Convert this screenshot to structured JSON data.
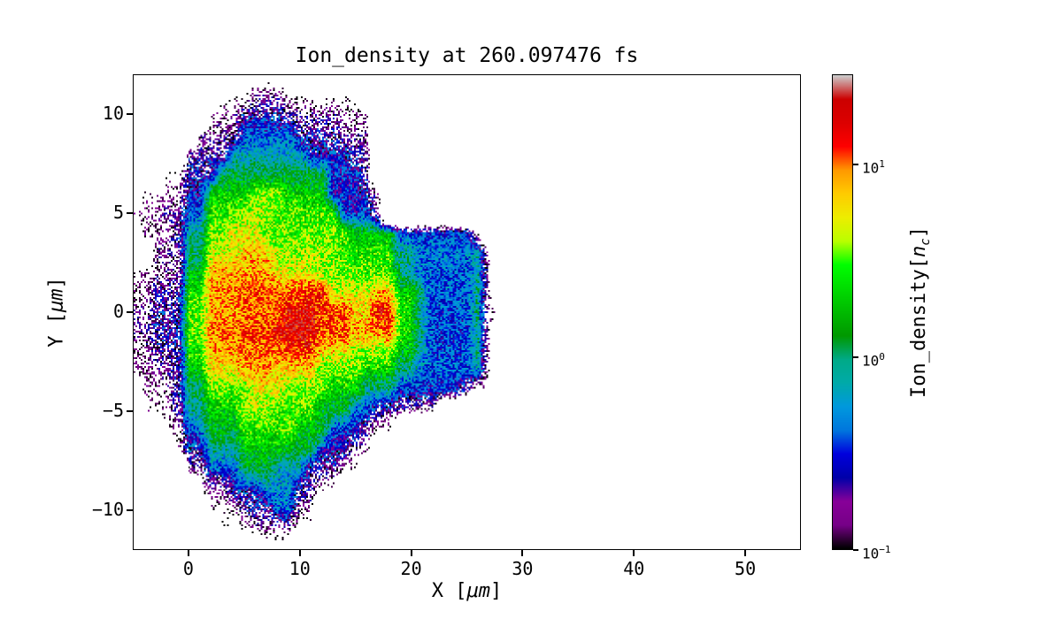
{
  "chart_data": {
    "type": "heatmap",
    "title": "Ion_density at 260.097476 fs",
    "xlabel": {
      "prefix": "X [",
      "italic": "μm",
      "suffix": "]"
    },
    "ylabel": {
      "prefix": "Y [",
      "italic": "μm",
      "suffix": "]"
    },
    "xlim": [
      -5,
      55
    ],
    "ylim": [
      -12,
      12
    ],
    "xticks": [
      0,
      10,
      20,
      30,
      40,
      50
    ],
    "yticks": [
      -10,
      -5,
      0,
      5,
      10
    ],
    "colorbar": {
      "label": {
        "prefix": "Ion_density[",
        "var": "n",
        "sub": "c",
        "suffix": "]"
      },
      "scale": "log",
      "tick_exponents": [
        1,
        0,
        -1
      ],
      "vmin_log10": -1,
      "vmax_log10": 1.47,
      "colormap": "nipy_spectral"
    },
    "colormap_stops": [
      [
        0.0,
        "#000000"
      ],
      [
        0.05,
        "#770088"
      ],
      [
        0.1,
        "#880099"
      ],
      [
        0.15,
        "#0000AA"
      ],
      [
        0.2,
        "#0000DD"
      ],
      [
        0.25,
        "#0077DD"
      ],
      [
        0.3,
        "#0099DD"
      ],
      [
        0.35,
        "#00AAAA"
      ],
      [
        0.4,
        "#00AA88"
      ],
      [
        0.45,
        "#009900"
      ],
      [
        0.5,
        "#00BB00"
      ],
      [
        0.55,
        "#00DD00"
      ],
      [
        0.6,
        "#00FF00"
      ],
      [
        0.65,
        "#BBFF00"
      ],
      [
        0.7,
        "#EEEE00"
      ],
      [
        0.75,
        "#FFCC00"
      ],
      [
        0.8,
        "#FF9900"
      ],
      [
        0.85,
        "#FF0000"
      ],
      [
        0.9,
        "#DD0000"
      ],
      [
        0.95,
        "#CC0000"
      ],
      [
        1.0,
        "#CCCCCC"
      ]
    ],
    "noise_amp": 0.48,
    "noise_amp_dense": 0.25,
    "dense_cutoff": -0.6,
    "display_threshold": -1.03,
    "background": "#ffffff",
    "grid": {
      "units": "log10(n/nc)",
      "x0": -5,
      "dx": 1,
      "y0": 12,
      "dy": -1,
      "ncols": 36,
      "nrows": 25,
      "values": [
        [
          -3,
          -3,
          -3,
          -3,
          -3,
          -3,
          -3,
          -3,
          -3,
          -1.7,
          -1.7,
          -1.7,
          -1.7,
          -1.7,
          -1.7,
          -1.7,
          -1.7,
          -1.7,
          -1.7,
          -3,
          -3,
          -3,
          -3,
          -3,
          -3,
          -3,
          -3,
          -3,
          -3,
          -3,
          -3,
          -3,
          -3,
          -3,
          -3,
          -3
        ],
        [
          -3,
          -3,
          -3,
          -3,
          -3,
          -3,
          -3,
          -3,
          -1.5,
          -1.5,
          -1.5,
          -1.1,
          -1.1,
          -1.1,
          -1.5,
          -1.5,
          -1.5,
          -1.5,
          -1.5,
          -1.5,
          -1.5,
          -3,
          -3,
          -3,
          -3,
          -3,
          -3,
          -3,
          -3,
          -3,
          -3,
          -3,
          -3,
          -3,
          -3,
          -3
        ],
        [
          -3,
          -3,
          -3,
          -3,
          -3,
          -3,
          -3,
          -1.2,
          -1.2,
          -1.2,
          -0.7,
          -0.7,
          -0.7,
          -0.7,
          -1,
          -1,
          -1,
          -1,
          -1,
          -1.2,
          -1.2,
          -1.2,
          -3,
          -3,
          -3,
          -3,
          -3,
          -3,
          -3,
          -3,
          -3,
          -3,
          -3,
          -3,
          -3,
          -3
        ],
        [
          -3,
          -3,
          -3,
          -3,
          -3,
          -3,
          -1.1,
          -1.1,
          -1.1,
          -1.1,
          -0.4,
          -0.4,
          -0.4,
          -0.4,
          -0.4,
          -0.8,
          -0.8,
          -0.8,
          -0.8,
          -1.1,
          -1.1,
          -1.1,
          -3,
          -3,
          -3,
          -3,
          -3,
          -3,
          -3,
          -3,
          -3,
          -3,
          -3,
          -3,
          -3,
          -3
        ],
        [
          -3,
          -3,
          -3,
          -3,
          -3,
          -0.9,
          -0.9,
          -0.9,
          -0.9,
          -0.2,
          -0.2,
          -0.2,
          -0.2,
          -0.2,
          -0.2,
          -0.2,
          -0.6,
          -0.6,
          -0.6,
          -0.6,
          -0.9,
          -0.9,
          -3,
          -3,
          -3,
          -3,
          -3,
          -3,
          -3,
          -3,
          -3,
          -3,
          -3,
          -3,
          -3,
          -3
        ],
        [
          -3,
          -3,
          -3,
          -1.4,
          -1.4,
          -0.7,
          -0.7,
          -0.7,
          0.05,
          0.05,
          0.05,
          0.05,
          0.05,
          0.05,
          0.05,
          0.05,
          0.05,
          0.05,
          -0.5,
          -0.5,
          -0.5,
          -0.9,
          -3,
          -3,
          -3,
          -3,
          -3,
          -3,
          -3,
          -3,
          -3,
          -3,
          -3,
          -3,
          -3,
          -3
        ],
        [
          -3,
          -1.3,
          -1.3,
          -1.3,
          -1.3,
          -0.6,
          -0.6,
          0.3,
          0.3,
          0.3,
          0.3,
          0.55,
          0.55,
          0.55,
          0.3,
          0.3,
          0.3,
          0.3,
          -0.6,
          -0.6,
          -0.6,
          -0.6,
          -1.2,
          -3,
          -3,
          -3,
          -3,
          -3,
          -3,
          -3,
          -3,
          -3,
          -3,
          -3,
          -3,
          -3
        ],
        [
          -1.2,
          -1.2,
          -1.2,
          -1,
          -1,
          -0.4,
          -0.4,
          0.45,
          0.45,
          0.45,
          0.6,
          0.6,
          0.6,
          0.45,
          0.45,
          0.45,
          0.45,
          0.45,
          0.45,
          -0.5,
          -0.5,
          -0.5,
          -1.1,
          -3,
          -3,
          -3,
          -3,
          -3,
          -3,
          -3,
          -3,
          -3,
          -3,
          -3,
          -3,
          -3
        ],
        [
          -3,
          -1.2,
          -1.2,
          -1.2,
          -0.8,
          -0.1,
          -0.1,
          0.55,
          0.55,
          0.75,
          0.75,
          0.75,
          0.5,
          0.5,
          0.5,
          0.5,
          0.5,
          0.5,
          0.5,
          0.5,
          0.25,
          0.25,
          0.25,
          0.25,
          -0.45,
          -0.45,
          -0.45,
          -0.45,
          -0.45,
          -0.45,
          -0.45,
          -1.3,
          -3,
          -3,
          -3,
          -3
        ],
        [
          -3,
          -3,
          -1.1,
          -1.1,
          -1.1,
          0,
          0,
          0.7,
          0.7,
          0.7,
          0.85,
          0.85,
          0.85,
          0.6,
          0.6,
          0.6,
          0.6,
          0.6,
          0.6,
          0.4,
          0.4,
          0.4,
          0.4,
          0.4,
          -0.1,
          -0.1,
          -0.35,
          -0.35,
          -0.35,
          -0.35,
          -0.35,
          -0.15,
          -1.3,
          -3,
          -3,
          -3
        ],
        [
          -1.3,
          -1.3,
          -1.1,
          -1.1,
          -1.1,
          0.2,
          0.2,
          0.9,
          0.9,
          0.9,
          0.9,
          0.9,
          0.9,
          0.75,
          0.75,
          0.75,
          0.75,
          0.55,
          0.55,
          0.55,
          0.55,
          0.45,
          0.45,
          0.45,
          0,
          -0.15,
          -0.4,
          -0.4,
          -0.4,
          -0.4,
          -0.4,
          -0.1,
          -1.2,
          -3,
          -3,
          -3
        ],
        [
          -1.2,
          -1.2,
          -0.9,
          -0.9,
          -0.9,
          0.4,
          0.4,
          0.95,
          0.95,
          0.95,
          1.05,
          1.05,
          1.05,
          1,
          1,
          1,
          1.15,
          1.15,
          0.7,
          0.7,
          0.7,
          0.7,
          0.9,
          0.9,
          0.3,
          0.35,
          -0.1,
          -0.4,
          -0.4,
          -0.4,
          -0.4,
          -0.05,
          -1.2,
          -3,
          -3,
          -3
        ],
        [
          -1.1,
          -1.1,
          -0.8,
          -0.8,
          -0.8,
          0.5,
          0.5,
          0.9,
          0.9,
          0.9,
          1,
          1,
          1,
          1,
          1.25,
          1.25,
          1.25,
          1.1,
          1.1,
          1.1,
          0.8,
          0.8,
          1.2,
          1.2,
          0.4,
          0.3,
          -0.15,
          -0.45,
          -0.45,
          -0.45,
          -0.45,
          -0.05,
          -1.2,
          -1.5,
          -3,
          -3
        ],
        [
          -1.1,
          -1.1,
          -0.8,
          -0.8,
          -0.8,
          0.5,
          0.5,
          1,
          1,
          1,
          1.1,
          1.1,
          1.1,
          1.25,
          1.25,
          1.25,
          1.25,
          1.05,
          1.05,
          1.05,
          0.9,
          0.9,
          0.9,
          1.1,
          0.45,
          0.3,
          -0.15,
          -0.45,
          -0.45,
          -0.45,
          -0.45,
          -0.05,
          -1.3,
          -3,
          -3,
          -3
        ],
        [
          -1.2,
          -1.2,
          -0.9,
          -0.9,
          -0.9,
          0.4,
          0.4,
          0.9,
          0.9,
          0.9,
          1,
          1,
          1,
          1,
          1.1,
          1.1,
          1.1,
          0.8,
          0.8,
          0.8,
          0.6,
          0.6,
          0.6,
          0.6,
          0.2,
          0.25,
          -0.2,
          -0.45,
          -0.45,
          -0.45,
          -0.45,
          -0.1,
          -1.3,
          -3,
          -3,
          -3
        ],
        [
          -1.2,
          -1.2,
          -1.2,
          -0.9,
          -0.9,
          0.2,
          0.2,
          0.75,
          0.75,
          0.75,
          0.9,
          0.9,
          0.9,
          0.8,
          0.8,
          0.8,
          0.8,
          0.5,
          0.5,
          0.5,
          0.5,
          0.3,
          0.3,
          0.3,
          -0.1,
          -0.1,
          -0.4,
          -0.4,
          -0.4,
          -0.4,
          -0.4,
          -0.2,
          -1.4,
          -3,
          -3,
          -3
        ],
        [
          -3,
          -1.2,
          -1.2,
          -1.2,
          -0.8,
          0,
          0,
          0.5,
          0.5,
          0.5,
          0.5,
          0.75,
          0.75,
          0.75,
          0.5,
          0.5,
          0.5,
          0.5,
          0.3,
          0.3,
          0.3,
          -0.1,
          -0.1,
          -0.1,
          -0.5,
          -0.5,
          -0.5,
          -0.5,
          -0.5,
          -0.5,
          -1,
          -1.5,
          -1.5,
          -3,
          -3,
          -3
        ],
        [
          -3,
          -1.3,
          -1.3,
          -1.3,
          -0.9,
          -0.1,
          -0.1,
          0.3,
          0.3,
          0.3,
          0.6,
          0.6,
          0.6,
          0.45,
          0.45,
          0.45,
          0.45,
          0.1,
          0.1,
          0.1,
          -0.4,
          -0.4,
          -0.9,
          -0.9,
          -0.9,
          -1.2,
          -1.2,
          -1.2,
          -3,
          -3,
          -3,
          -3,
          -3,
          -3,
          -3,
          -3
        ],
        [
          -3,
          -3,
          -3,
          -1.3,
          -1.3,
          -0.4,
          -0.4,
          0.15,
          0.15,
          0.15,
          0.4,
          0.4,
          0.4,
          0.4,
          0.6,
          0.2,
          0.2,
          0.2,
          -0.5,
          -0.5,
          -0.5,
          -1,
          -1.4,
          -1.4,
          -3,
          -3,
          -3,
          -3,
          -3,
          -3,
          -3,
          -3,
          -3,
          -3,
          -3,
          -3
        ],
        [
          -3,
          -3,
          -3,
          -3,
          -1.3,
          -0.7,
          -0.7,
          -0.1,
          -0.1,
          -0.1,
          0.25,
          0.25,
          0.25,
          0.25,
          0.1,
          0.1,
          0.1,
          -0.6,
          -0.6,
          -0.6,
          -1.2,
          -1.2,
          -3,
          -3,
          -3,
          -3,
          -3,
          -3,
          -3,
          -3,
          -3,
          -3,
          -3,
          -3,
          -3,
          -3
        ],
        [
          -3,
          -3,
          -3,
          -3,
          -3,
          -1.1,
          -1.1,
          -0.4,
          -0.4,
          -0.4,
          0.05,
          0.05,
          0.05,
          -0.2,
          -0.2,
          -0.2,
          -0.9,
          -0.9,
          -0.9,
          -1.4,
          -1.4,
          -3,
          -3,
          -3,
          -3,
          -3,
          -3,
          -3,
          -3,
          -3,
          -3,
          -3,
          -3,
          -3,
          -3,
          -3
        ],
        [
          -3,
          -3,
          -3,
          -3,
          -3,
          -3,
          -1.2,
          -1.2,
          -1.2,
          -0.6,
          -0.6,
          -0.6,
          -0.25,
          -0.25,
          -0.25,
          -0.9,
          -0.9,
          -1.4,
          -1.4,
          -3,
          -3,
          -3,
          -3,
          -3,
          -3,
          -3,
          -3,
          -3,
          -3,
          -3,
          -3,
          -3,
          -3,
          -3,
          -3,
          -3
        ],
        [
          -3,
          -3,
          -3,
          -3,
          -3,
          -3,
          -3,
          -1.4,
          -1.4,
          -1.4,
          -0.8,
          -0.8,
          -0.8,
          -0.35,
          -0.35,
          -1.2,
          -1.2,
          -3,
          -3,
          -3,
          -3,
          -3,
          -3,
          -3,
          -3,
          -3,
          -3,
          -3,
          -3,
          -3,
          -3,
          -3,
          -3,
          -3,
          -3,
          -3
        ],
        [
          -3,
          -3,
          -3,
          -3,
          -3,
          -3,
          -3,
          -3,
          -1.5,
          -1.5,
          -1.5,
          -1.2,
          -1.2,
          -1.2,
          -1.2,
          -1.6,
          -1.6,
          -3,
          -3,
          -3,
          -3,
          -3,
          -3,
          -3,
          -3,
          -3,
          -3,
          -3,
          -3,
          -3,
          -3,
          -3,
          -3,
          -3,
          -3,
          -3
        ],
        [
          -3,
          -3,
          -3,
          -3,
          -3,
          -3,
          -3,
          -3,
          -3,
          -3,
          -1.7,
          -1.7,
          -1.7,
          -1.7,
          -1.7,
          -3,
          -3,
          -3,
          -3,
          -3,
          -3,
          -3,
          -3,
          -3,
          -3,
          -3,
          -3,
          -3,
          -3,
          -3,
          -3,
          -3,
          -3,
          -3,
          -3,
          -3
        ]
      ]
    }
  }
}
